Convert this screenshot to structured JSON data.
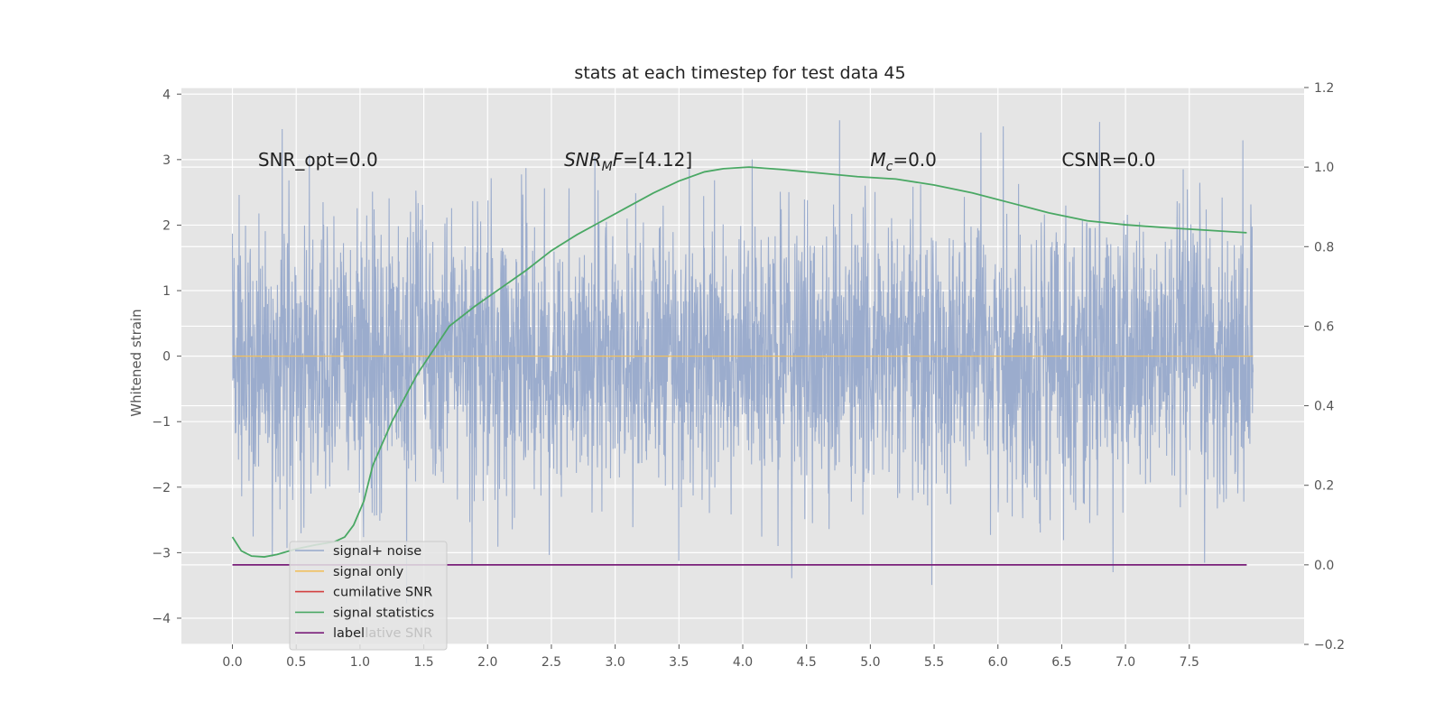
{
  "chart_data": {
    "type": "line",
    "title": "stats at each timestep for test data 45",
    "xlabel": "",
    "ylabel": "Whitened strain",
    "xlim": [
      -0.4,
      8.4
    ],
    "ylim": [
      -4.4,
      4.1
    ],
    "y2lim": [
      -0.2,
      1.2
    ],
    "x_ticks": [
      "0.0",
      "0.5",
      "1.0",
      "1.5",
      "2.0",
      "2.5",
      "3.0",
      "3.5",
      "4.0",
      "4.5",
      "5.0",
      "5.5",
      "6.0",
      "6.5",
      "7.0",
      "7.5"
    ],
    "y_ticks": [
      "4",
      "3",
      "2",
      "1",
      "0",
      "−1",
      "−2",
      "−3",
      "−4"
    ],
    "y2_ticks": [
      "1.2",
      "1.0",
      "0.8",
      "0.6",
      "0.4",
      "0.2",
      "0.0",
      "−0.2"
    ],
    "grid": true,
    "legend_placement": "lower-left",
    "annotations": [
      {
        "text": "SNR_opt=0.0",
        "x": 0.2,
        "y": 3.0
      },
      {
        "text": "SNR",
        "sub": "M",
        "tail": "F=[4.12]",
        "italic": true,
        "x": 2.6,
        "y": 3.0
      },
      {
        "text": "M",
        "sub": "c",
        "tail": "=0.0",
        "italic": true,
        "x": 5.0,
        "y": 3.0
      },
      {
        "text": "CSNR=0.0",
        "x": 6.5,
        "y": 3.0
      }
    ],
    "series": [
      {
        "name": "signal+ noise",
        "color": "#97a9cb",
        "axis": "left",
        "x_range": [
          0.0,
          8.0
        ],
        "mean": 0.0,
        "envelope_upper": 3.6,
        "envelope_lower": -4.0,
        "note_values": "dense noise trace"
      },
      {
        "name": "signal only",
        "color": "#f0c060",
        "axis": "left",
        "x": [
          0.0,
          8.0
        ],
        "y": [
          0.0,
          0.0
        ]
      },
      {
        "name": "cumilative SNR",
        "color": "#d33f3f",
        "axis": "right",
        "x": [],
        "y": []
      },
      {
        "name": "signal statistics",
        "color": "#4aa864",
        "axis": "right",
        "x": [
          0.0,
          0.07,
          0.15,
          0.25,
          0.35,
          0.5,
          0.65,
          0.8,
          0.88,
          0.95,
          1.03,
          1.1,
          1.25,
          1.45,
          1.7,
          1.9,
          2.1,
          2.3,
          2.5,
          2.7,
          2.9,
          3.1,
          3.3,
          3.5,
          3.7,
          3.85,
          4.05,
          4.3,
          4.6,
          4.9,
          5.2,
          5.5,
          5.8,
          6.1,
          6.4,
          6.7,
          7.0,
          7.3,
          7.6,
          7.95
        ],
        "y": [
          0.07,
          0.035,
          0.022,
          0.02,
          0.026,
          0.04,
          0.05,
          0.058,
          0.07,
          0.1,
          0.16,
          0.25,
          0.36,
          0.48,
          0.6,
          0.65,
          0.695,
          0.74,
          0.79,
          0.83,
          0.865,
          0.9,
          0.935,
          0.965,
          0.988,
          0.996,
          1.0,
          0.994,
          0.985,
          0.976,
          0.97,
          0.955,
          0.935,
          0.91,
          0.885,
          0.865,
          0.855,
          0.848,
          0.842,
          0.835
        ]
      },
      {
        "name": "label",
        "color": "#7a1f7a",
        "axis": "right",
        "x": [
          0.0,
          7.95
        ],
        "y": [
          0.0,
          0.0
        ]
      }
    ],
    "legend_overlap_text": "cumilative SNR"
  }
}
